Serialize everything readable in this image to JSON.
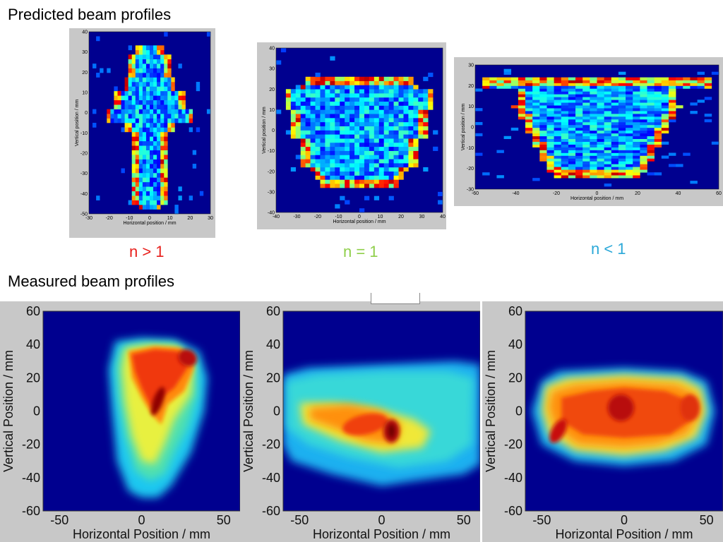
{
  "titles": {
    "predicted": "Predicted beam profiles",
    "measured": "Measured beam profiles"
  },
  "n_labels": [
    {
      "text": "n > 1",
      "color": "#e8201c"
    },
    {
      "text": "n = 1",
      "color": "#8fcf4a"
    },
    {
      "text": "n < 1",
      "color": "#2aa8d8"
    }
  ],
  "chart_data": [
    {
      "type": "heatmap",
      "group": "predicted",
      "case": "n > 1",
      "xlabel": "Horizontal position / mm",
      "ylabel": "Vertical position / mm",
      "xlim": [
        -30,
        30
      ],
      "ylim": [
        -50,
        40
      ],
      "xticks": [
        -30,
        -20,
        -10,
        0,
        10,
        20,
        30
      ],
      "yticks": [
        -50,
        -40,
        -30,
        -20,
        -10,
        0,
        10,
        20,
        30,
        40
      ],
      "shape": "keyhole"
    },
    {
      "type": "heatmap",
      "group": "predicted",
      "case": "n = 1",
      "xlabel": "Horizontal position / mm",
      "ylabel": "Vertical position / mm",
      "xlim": [
        -40,
        40
      ],
      "ylim": [
        -40,
        40
      ],
      "xticks": [
        -40,
        -30,
        -20,
        -10,
        0,
        10,
        20,
        30,
        40
      ],
      "yticks": [
        -40,
        -30,
        -20,
        -10,
        0,
        10,
        20,
        30,
        40
      ],
      "shape": "barrel"
    },
    {
      "type": "heatmap",
      "group": "predicted",
      "case": "n < 1",
      "xlabel": "Horizontal position / mm",
      "ylabel": "Vertical position / mm",
      "xlim": [
        -60,
        60
      ],
      "ylim": [
        -30,
        30
      ],
      "xticks": [
        -60,
        -40,
        -20,
        0,
        20,
        40,
        60
      ],
      "yticks": [
        -30,
        -20,
        -10,
        0,
        10,
        20,
        30
      ],
      "shape": "trapezoid"
    },
    {
      "type": "heatmap",
      "group": "measured",
      "case": "n > 1",
      "xlabel": "Horizontal Position / mm",
      "ylabel": "Vertical Position / mm",
      "xlim": [
        -60,
        60
      ],
      "ylim": [
        -60,
        60
      ],
      "xticks": [
        -50,
        0,
        50
      ],
      "yticks": [
        -60,
        -40,
        -20,
        0,
        20,
        40,
        60
      ]
    },
    {
      "type": "heatmap",
      "group": "measured",
      "case": "n = 1",
      "xlabel": "Horizontal Position / mm",
      "ylabel": "Vertical Position / mm",
      "xlim": [
        -60,
        60
      ],
      "ylim": [
        -60,
        60
      ],
      "xticks": [
        -50,
        0,
        50
      ],
      "yticks": [
        -60,
        -40,
        -20,
        0,
        20,
        40,
        60
      ]
    },
    {
      "type": "heatmap",
      "group": "measured",
      "case": "n < 1",
      "xlabel": "Horizontal Position / mm",
      "ylabel": "Vertical Position / mm",
      "xlim": [
        -60,
        60
      ],
      "ylim": [
        -60,
        60
      ],
      "xticks": [
        -50,
        0,
        50
      ],
      "yticks": [
        -60,
        -40,
        -20,
        0,
        20,
        40,
        60
      ]
    }
  ]
}
